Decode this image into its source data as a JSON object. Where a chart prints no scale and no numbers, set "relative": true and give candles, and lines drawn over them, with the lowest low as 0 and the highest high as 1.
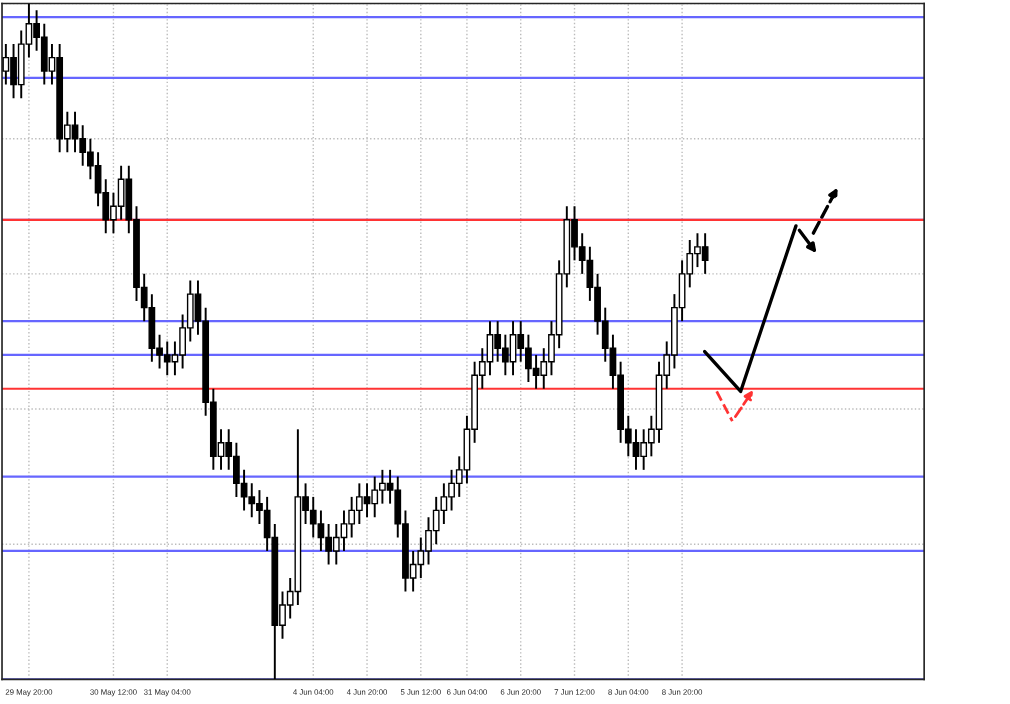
{
  "chart_data": {
    "type": "candlestick",
    "relative": true,
    "tick_labels": "x",
    "grid": true,
    "categories": [
      null,
      null,
      null,
      "29 May 20:00",
      null,
      null,
      null,
      null,
      null,
      null,
      null,
      null,
      null,
      null,
      "30 May 12:00",
      null,
      null,
      null,
      null,
      null,
      null,
      "31 May 04:00",
      null,
      null,
      null,
      null,
      null,
      null,
      null,
      null,
      null,
      null,
      null,
      null,
      null,
      null,
      null,
      null,
      null,
      null,
      "4 Jun 04:00",
      null,
      null,
      null,
      null,
      null,
      null,
      "4 Jun 20:00",
      null,
      null,
      null,
      null,
      null,
      null,
      "5 Jun 12:00",
      null,
      null,
      null,
      null,
      null,
      "6 Jun 04:00",
      null,
      null,
      null,
      null,
      null,
      null,
      "6 Jun 20:00",
      null,
      null,
      null,
      null,
      null,
      null,
      "7 Jun 12:00",
      null,
      null,
      null,
      null,
      null,
      null,
      "8 Jun 04:00",
      null,
      null,
      null,
      null,
      null,
      null,
      "8 Jun 20:00",
      null,
      null,
      null,
      null,
      null,
      null,
      null,
      null,
      null,
      null,
      null,
      null,
      null,
      null,
      null,
      null,
      null,
      null,
      null,
      null,
      null,
      null,
      null,
      null,
      null,
      null,
      null,
      null,
      null,
      null,
      null
    ],
    "series": [
      {
        "color": "#000000",
        "ohlc": [
          [
            0.9,
            0.94,
            0.88,
            0.92
          ],
          [
            0.92,
            0.94,
            0.86,
            0.88
          ],
          [
            0.88,
            0.96,
            0.86,
            0.94
          ],
          [
            0.94,
            1.0,
            0.92,
            0.97
          ],
          [
            0.97,
            0.99,
            0.93,
            0.95
          ],
          [
            0.95,
            0.97,
            0.88,
            0.9
          ],
          [
            0.9,
            0.94,
            0.88,
            0.92
          ],
          [
            0.92,
            0.94,
            0.78,
            0.8
          ],
          [
            0.8,
            0.84,
            0.78,
            0.82
          ],
          [
            0.82,
            0.84,
            0.78,
            0.8
          ],
          [
            0.8,
            0.82,
            0.76,
            0.78
          ],
          [
            0.78,
            0.8,
            0.74,
            0.76
          ],
          [
            0.76,
            0.78,
            0.7,
            0.72
          ],
          [
            0.72,
            0.74,
            0.66,
            0.68
          ],
          [
            0.68,
            0.72,
            0.66,
            0.7
          ],
          [
            0.7,
            0.76,
            0.68,
            0.74
          ],
          [
            0.74,
            0.76,
            0.66,
            0.68
          ],
          [
            0.68,
            0.7,
            0.56,
            0.58
          ],
          [
            0.58,
            0.6,
            0.53,
            0.55
          ],
          [
            0.55,
            0.57,
            0.47,
            0.49
          ],
          [
            0.49,
            0.51,
            0.46,
            0.48
          ],
          [
            0.48,
            0.5,
            0.45,
            0.47
          ],
          [
            0.47,
            0.5,
            0.45,
            0.48
          ],
          [
            0.48,
            0.54,
            0.46,
            0.52
          ],
          [
            0.52,
            0.59,
            0.5,
            0.57
          ],
          [
            0.57,
            0.59,
            0.51,
            0.53
          ],
          [
            0.53,
            0.55,
            0.39,
            0.41
          ],
          [
            0.41,
            0.43,
            0.31,
            0.33
          ],
          [
            0.33,
            0.37,
            0.31,
            0.35
          ],
          [
            0.35,
            0.37,
            0.31,
            0.33
          ],
          [
            0.33,
            0.35,
            0.27,
            0.29
          ],
          [
            0.29,
            0.31,
            0.25,
            0.27
          ],
          [
            0.27,
            0.29,
            0.24,
            0.26
          ],
          [
            0.26,
            0.28,
            0.23,
            0.25
          ],
          [
            0.25,
            0.27,
            0.19,
            0.21
          ],
          [
            0.21,
            0.23,
            0.0,
            0.08
          ],
          [
            0.08,
            0.13,
            0.06,
            0.11
          ],
          [
            0.11,
            0.15,
            0.09,
            0.13
          ],
          [
            0.13,
            0.37,
            0.11,
            0.27
          ],
          [
            0.27,
            0.29,
            0.23,
            0.25
          ],
          [
            0.25,
            0.27,
            0.21,
            0.23
          ],
          [
            0.23,
            0.25,
            0.19,
            0.21
          ],
          [
            0.21,
            0.23,
            0.17,
            0.19
          ],
          [
            0.19,
            0.23,
            0.17,
            0.21
          ],
          [
            0.21,
            0.25,
            0.19,
            0.23
          ],
          [
            0.23,
            0.27,
            0.21,
            0.25
          ],
          [
            0.25,
            0.29,
            0.23,
            0.27
          ],
          [
            0.27,
            0.29,
            0.24,
            0.26
          ],
          [
            0.26,
            0.3,
            0.24,
            0.28
          ],
          [
            0.28,
            0.31,
            0.26,
            0.29
          ],
          [
            0.29,
            0.31,
            0.26,
            0.28
          ],
          [
            0.28,
            0.3,
            0.21,
            0.23
          ],
          [
            0.23,
            0.25,
            0.13,
            0.15
          ],
          [
            0.15,
            0.19,
            0.13,
            0.17
          ],
          [
            0.17,
            0.21,
            0.15,
            0.19
          ],
          [
            0.19,
            0.24,
            0.17,
            0.22
          ],
          [
            0.22,
            0.27,
            0.2,
            0.25
          ],
          [
            0.25,
            0.29,
            0.23,
            0.27
          ],
          [
            0.27,
            0.31,
            0.25,
            0.29
          ],
          [
            0.29,
            0.33,
            0.27,
            0.31
          ],
          [
            0.31,
            0.39,
            0.29,
            0.37
          ],
          [
            0.37,
            0.47,
            0.35,
            0.45
          ],
          [
            0.45,
            0.49,
            0.43,
            0.47
          ],
          [
            0.47,
            0.53,
            0.45,
            0.51
          ],
          [
            0.51,
            0.53,
            0.47,
            0.49
          ],
          [
            0.49,
            0.51,
            0.45,
            0.47
          ],
          [
            0.47,
            0.53,
            0.45,
            0.51
          ],
          [
            0.51,
            0.53,
            0.47,
            0.49
          ],
          [
            0.49,
            0.51,
            0.44,
            0.46
          ],
          [
            0.46,
            0.48,
            0.43,
            0.45
          ],
          [
            0.45,
            0.49,
            0.43,
            0.47
          ],
          [
            0.47,
            0.53,
            0.45,
            0.51
          ],
          [
            0.51,
            0.62,
            0.49,
            0.6
          ],
          [
            0.6,
            0.7,
            0.58,
            0.68
          ],
          [
            0.68,
            0.7,
            0.62,
            0.64
          ],
          [
            0.64,
            0.66,
            0.6,
            0.62
          ],
          [
            0.62,
            0.64,
            0.56,
            0.58
          ],
          [
            0.58,
            0.6,
            0.51,
            0.53
          ],
          [
            0.53,
            0.55,
            0.47,
            0.49
          ],
          [
            0.49,
            0.51,
            0.43,
            0.45
          ],
          [
            0.45,
            0.47,
            0.35,
            0.37
          ],
          [
            0.37,
            0.39,
            0.33,
            0.35
          ],
          [
            0.35,
            0.37,
            0.31,
            0.33
          ],
          [
            0.33,
            0.37,
            0.31,
            0.35
          ],
          [
            0.35,
            0.39,
            0.33,
            0.37
          ],
          [
            0.37,
            0.47,
            0.35,
            0.45
          ],
          [
            0.45,
            0.5,
            0.43,
            0.48
          ],
          [
            0.48,
            0.57,
            0.46,
            0.55
          ],
          [
            0.55,
            0.62,
            0.53,
            0.6
          ],
          [
            0.6,
            0.65,
            0.58,
            0.63
          ],
          [
            0.63,
            0.66,
            0.61,
            0.64
          ],
          [
            0.64,
            0.66,
            0.6,
            0.62
          ],
          null,
          null,
          null,
          null,
          null,
          null,
          null,
          null,
          null,
          null,
          null,
          null,
          null,
          null,
          null,
          null,
          null,
          null,
          null,
          null,
          null,
          null,
          null,
          null,
          null,
          null,
          null,
          null
        ]
      }
    ],
    "ref_lines": [
      {
        "axis": "y",
        "value": 0.98,
        "color": "#6666ff"
      },
      {
        "axis": "y",
        "value": 0.89,
        "color": "#6666ff"
      },
      {
        "axis": "y",
        "value": 0.68,
        "color": "#6666ff"
      },
      {
        "axis": "y",
        "value": 0.68,
        "color": "#ff3333"
      },
      {
        "axis": "y",
        "value": 0.53,
        "color": "#6666ff"
      },
      {
        "axis": "y",
        "value": 0.48,
        "color": "#6666ff"
      },
      {
        "axis": "y",
        "value": 0.43,
        "color": "#ff3333"
      },
      {
        "axis": "y",
        "value": 0.3,
        "color": "#6666ff"
      },
      {
        "axis": "y",
        "value": 0.19,
        "color": "#6666ff"
      },
      {
        "axis": "y",
        "value": 0.0,
        "color": "#6666ff"
      }
    ]
  }
}
